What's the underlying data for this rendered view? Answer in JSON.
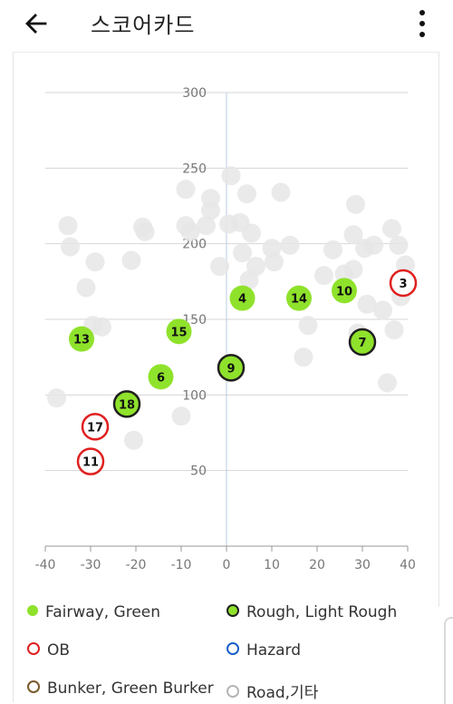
{
  "appbar": {
    "title": "스코어카드",
    "back_icon": "arrow-left-icon",
    "menu_icon": "more-vertical-icon"
  },
  "legend": [
    {
      "label": "Fairway, Green",
      "style": "filled-green"
    },
    {
      "label": "Rough, Light Rough",
      "style": "green-dark-ring"
    },
    {
      "label": "OB",
      "style": "red-ring"
    },
    {
      "label": "Hazard",
      "style": "blue-ring"
    },
    {
      "label": "Bunker, Green Burker",
      "style": "brown-ring"
    },
    {
      "label": "Road,기타",
      "style": "gray-ring"
    }
  ],
  "colors": {
    "fairway": "#8fe22b",
    "rough_ring": "#1f1f1f",
    "ob": "#e02020",
    "hazard": "#1a5fc8",
    "bunker": "#7a5a2a",
    "road": "#b5b5b5",
    "background_dot": "#e6e6e6",
    "axis": "#b8cde0",
    "grid": "#d6d6d6"
  },
  "chart_data": {
    "type": "scatter",
    "xlim": [
      -40,
      40
    ],
    "ylim": [
      0,
      300
    ],
    "xticks": [
      "-40",
      "-30",
      "-20",
      "-10",
      "0",
      "10",
      "20",
      "30",
      "40"
    ],
    "yticks": [
      "50",
      "100",
      "150",
      "200",
      "250",
      "300"
    ],
    "grid": true,
    "legend_position": "bottom",
    "labeled_shots": [
      {
        "label": "13",
        "x": -32,
        "y": 137,
        "category": "Fairway, Green"
      },
      {
        "label": "15",
        "x": -10.5,
        "y": 142,
        "category": "Fairway, Green"
      },
      {
        "label": "6",
        "x": -14.5,
        "y": 112,
        "category": "Fairway, Green"
      },
      {
        "label": "4",
        "x": 3.5,
        "y": 164,
        "category": "Fairway, Green"
      },
      {
        "label": "14",
        "x": 16,
        "y": 164,
        "category": "Fairway, Green"
      },
      {
        "label": "10",
        "x": 26,
        "y": 169,
        "category": "Fairway, Green"
      },
      {
        "label": "18",
        "x": -22,
        "y": 94,
        "category": "Rough, Light Rough"
      },
      {
        "label": "9",
        "x": 1,
        "y": 118,
        "category": "Rough, Light Rough"
      },
      {
        "label": "7",
        "x": 30,
        "y": 135,
        "category": "Rough, Light Rough"
      },
      {
        "label": "3",
        "x": 39,
        "y": 174,
        "category": "OB"
      },
      {
        "label": "17",
        "x": -29,
        "y": 79,
        "category": "OB"
      },
      {
        "label": "11",
        "x": -30,
        "y": 56,
        "category": "OB"
      }
    ],
    "background_shots": [
      [
        -37.5,
        98
      ],
      [
        -35,
        212
      ],
      [
        -34.5,
        198
      ],
      [
        -31,
        171
      ],
      [
        -29,
        188
      ],
      [
        -29.5,
        146
      ],
      [
        -27.5,
        145
      ],
      [
        -20.5,
        70
      ],
      [
        -21,
        189
      ],
      [
        -18.5,
        211
      ],
      [
        -18,
        208
      ],
      [
        -10,
        86
      ],
      [
        -9,
        236
      ],
      [
        -9,
        212
      ],
      [
        -8,
        208
      ],
      [
        -4.5,
        212
      ],
      [
        -3.5,
        230
      ],
      [
        -3.5,
        222
      ],
      [
        -1.5,
        185
      ],
      [
        0.5,
        213
      ],
      [
        1,
        245
      ],
      [
        3,
        214
      ],
      [
        3.5,
        194
      ],
      [
        4.5,
        233
      ],
      [
        5,
        176
      ],
      [
        5.5,
        207
      ],
      [
        6.5,
        185
      ],
      [
        10,
        197
      ],
      [
        10.5,
        188
      ],
      [
        12,
        234
      ],
      [
        14,
        199
      ],
      [
        17,
        125
      ],
      [
        18,
        146
      ],
      [
        21.5,
        179
      ],
      [
        23.5,
        196
      ],
      [
        26,
        180
      ],
      [
        28,
        183
      ],
      [
        28,
        206
      ],
      [
        28.5,
        226
      ],
      [
        30.5,
        197
      ],
      [
        31,
        160
      ],
      [
        32.5,
        199
      ],
      [
        34.5,
        156
      ],
      [
        35.5,
        108
      ],
      [
        36.5,
        210
      ],
      [
        37,
        143
      ],
      [
        38,
        199
      ],
      [
        38.5,
        165
      ],
      [
        39.5,
        186
      ],
      [
        29,
        141
      ]
    ]
  }
}
